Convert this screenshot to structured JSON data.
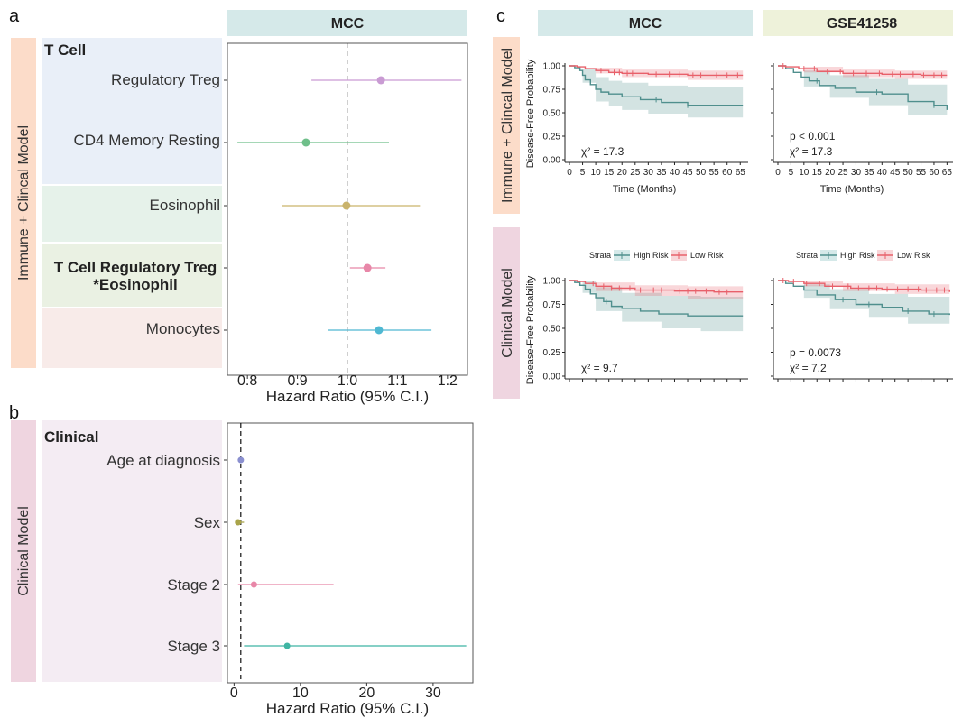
{
  "panels": {
    "a": "a",
    "b": "b",
    "c": "c"
  },
  "colors": {
    "tcell_bg": "#e9eff8",
    "eos_bg": "#e6f2ea",
    "inter_bg": "#eaf1e3",
    "mono_bg": "#f8ebe9",
    "clin_bg": "#f4ecf3",
    "side_immune": "#fcdcc9",
    "side_clin": "#efd5e0",
    "strip_mcc": "#d5e9e9",
    "strip_gse": "#eef2da",
    "high_risk": "#4f8f8d",
    "low_risk": "#e8606a"
  },
  "chart_data": [
    {
      "type": "forest",
      "panel": "a",
      "strip_label": "MCC",
      "side_label": "Immune + Clincal Model",
      "xlabel": "Hazard Ratio (95% C.I.)",
      "xticks": [
        "0.8",
        "0.9",
        "1.0",
        "1.1",
        "1.2"
      ],
      "xtick_values": [
        0.8,
        0.9,
        1.0,
        1.1,
        1.2
      ],
      "xlim": [
        0.76,
        1.24
      ],
      "reference": 1.0,
      "group_label": "T Cell",
      "rows": [
        {
          "label": "Regulatory Treg",
          "hr": 1.067,
          "lo": 0.928,
          "hi": 1.228,
          "color": "#c99bd3"
        },
        {
          "label": "CD4 Memory Resting",
          "hr": 0.917,
          "lo": 0.78,
          "hi": 1.083,
          "color": "#6fbf8a"
        },
        {
          "label": "Eosinophil",
          "hr": 0.998,
          "lo": 0.87,
          "hi": 1.145,
          "color": "#c9b36b"
        },
        {
          "label_line1": "T Cell Regulatory Treg",
          "label_line2": "*Eosinophil",
          "hr": 1.04,
          "lo": 1.005,
          "hi": 1.076,
          "color": "#e887a8"
        },
        {
          "label": "Monocytes",
          "hr": 1.063,
          "lo": 0.962,
          "hi": 1.168,
          "color": "#4fb8d2"
        }
      ]
    },
    {
      "type": "forest",
      "panel": "b",
      "side_label": "Clinical Model",
      "xlabel": "Hazard Ratio (95% C.I.)",
      "xticks": [
        "0",
        "10",
        "20",
        "30"
      ],
      "xtick_values": [
        0,
        10,
        20,
        30
      ],
      "xlim": [
        -1,
        36
      ],
      "reference": 1,
      "group_label": "Clinical",
      "rows": [
        {
          "label": "Age at diagnosis",
          "hr": 1.02,
          "lo": 0.95,
          "hi": 1.1,
          "color": "#8a8fcf"
        },
        {
          "label": "Sex",
          "hr": 0.6,
          "lo": 0.2,
          "hi": 1.5,
          "color": "#a9a44a"
        },
        {
          "label": "Stage 2",
          "hr": 3.0,
          "lo": 0.6,
          "hi": 15.0,
          "color": "#e887a8"
        },
        {
          "label": "Stage 3",
          "hr": 8.0,
          "lo": 1.5,
          "hi": 35.0,
          "color": "#3fb5a3"
        }
      ]
    },
    {
      "type": "line",
      "subtype": "kaplan-meier",
      "panel": "c",
      "col_labels": [
        "MCC",
        "GSE41258"
      ],
      "row_labels": [
        "Immune + Clincal Model",
        "Clinical Model"
      ],
      "ylabel": "Disease-Free Probability",
      "xlabel": "Time (Months)",
      "xticks": [
        "0",
        "5",
        "10",
        "15",
        "20",
        "25",
        "30",
        "35",
        "40",
        "45",
        "50",
        "55",
        "60",
        "65"
      ],
      "yticks": [
        "0.00",
        "0.25",
        "0.50",
        "0.75",
        "1.00"
      ],
      "xlim": [
        0,
        68
      ],
      "ylim": [
        0,
        1
      ],
      "legend_title": "Strata",
      "legend": [
        "High Risk",
        "Low Risk"
      ],
      "plots": [
        {
          "row": 0,
          "col": 0,
          "p_text": "",
          "chi_text": "χ² = 17.3",
          "high": [
            [
              0,
              1.0
            ],
            [
              2,
              0.98
            ],
            [
              4,
              0.95
            ],
            [
              5,
              0.9
            ],
            [
              6,
              0.85
            ],
            [
              8,
              0.8
            ],
            [
              10,
              0.75
            ],
            [
              12,
              0.72
            ],
            [
              15,
              0.7
            ],
            [
              20,
              0.67
            ],
            [
              27,
              0.64
            ],
            [
              35,
              0.61
            ],
            [
              45,
              0.58
            ],
            [
              66,
              0.58
            ]
          ],
          "high_ci": [
            [
              0,
              1.0,
              1.0
            ],
            [
              5,
              0.97,
              0.82
            ],
            [
              10,
              0.88,
              0.62
            ],
            [
              15,
              0.84,
              0.57
            ],
            [
              20,
              0.82,
              0.53
            ],
            [
              30,
              0.79,
              0.49
            ],
            [
              45,
              0.77,
              0.45
            ],
            [
              66,
              0.77,
              0.45
            ]
          ],
          "low": [
            [
              0,
              1.0
            ],
            [
              3,
              0.99
            ],
            [
              6,
              0.97
            ],
            [
              10,
              0.95
            ],
            [
              15,
              0.93
            ],
            [
              20,
              0.92
            ],
            [
              30,
              0.91
            ],
            [
              45,
              0.9
            ],
            [
              66,
              0.9
            ]
          ],
          "low_ci": [
            [
              0,
              1.0,
              1.0
            ],
            [
              10,
              0.98,
              0.92
            ],
            [
              20,
              0.96,
              0.88
            ],
            [
              45,
              0.95,
              0.85
            ],
            [
              66,
              0.95,
              0.84
            ]
          ],
          "high_censor": [
            33,
            45
          ],
          "low_censor": [
            12,
            17,
            19,
            22,
            24,
            28,
            33,
            38,
            42,
            47,
            50,
            56,
            60,
            64
          ]
        },
        {
          "row": 0,
          "col": 1,
          "p_text": "p < 0.001",
          "chi_text": "χ² = 17.3",
          "high": [
            [
              0,
              1.0
            ],
            [
              3,
              0.97
            ],
            [
              6,
              0.93
            ],
            [
              9,
              0.88
            ],
            [
              12,
              0.84
            ],
            [
              16,
              0.79
            ],
            [
              22,
              0.76
            ],
            [
              30,
              0.72
            ],
            [
              40,
              0.7
            ],
            [
              50,
              0.62
            ],
            [
              60,
              0.58
            ],
            [
              65,
              0.53
            ]
          ],
          "high_ci": [
            [
              0,
              1.0,
              1.0
            ],
            [
              10,
              0.95,
              0.78
            ],
            [
              20,
              0.9,
              0.66
            ],
            [
              35,
              0.86,
              0.58
            ],
            [
              50,
              0.8,
              0.48
            ],
            [
              65,
              0.74,
              0.35
            ]
          ],
          "low": [
            [
              0,
              1.0
            ],
            [
              3,
              0.99
            ],
            [
              8,
              0.97
            ],
            [
              15,
              0.94
            ],
            [
              25,
              0.92
            ],
            [
              40,
              0.91
            ],
            [
              55,
              0.9
            ],
            [
              65,
              0.9
            ]
          ],
          "low_ci": [
            [
              0,
              1.0,
              1.0
            ],
            [
              10,
              0.99,
              0.93
            ],
            [
              25,
              0.96,
              0.88
            ],
            [
              45,
              0.95,
              0.86
            ],
            [
              65,
              0.95,
              0.84
            ]
          ],
          "high_censor": [
            15,
            38,
            60
          ],
          "low_censor": [
            2,
            10,
            14,
            19,
            24,
            29,
            34,
            39,
            44,
            47,
            52,
            56,
            60,
            63
          ]
        },
        {
          "row": 1,
          "col": 0,
          "p_text": "",
          "chi_text": "χ² = 9.7",
          "high": [
            [
              0,
              1.0
            ],
            [
              2,
              0.98
            ],
            [
              4,
              0.95
            ],
            [
              6,
              0.91
            ],
            [
              8,
              0.86
            ],
            [
              10,
              0.82
            ],
            [
              13,
              0.78
            ],
            [
              16,
              0.73
            ],
            [
              20,
              0.71
            ],
            [
              27,
              0.68
            ],
            [
              34,
              0.65
            ],
            [
              45,
              0.63
            ],
            [
              66,
              0.63
            ]
          ],
          "high_ci": [
            [
              0,
              1.0,
              1.0
            ],
            [
              5,
              0.99,
              0.87
            ],
            [
              10,
              0.93,
              0.68
            ],
            [
              20,
              0.87,
              0.57
            ],
            [
              35,
              0.84,
              0.5
            ],
            [
              50,
              0.83,
              0.47
            ],
            [
              66,
              0.83,
              0.47
            ]
          ],
          "low": [
            [
              0,
              1.0
            ],
            [
              3,
              0.99
            ],
            [
              6,
              0.97
            ],
            [
              10,
              0.94
            ],
            [
              16,
              0.92
            ],
            [
              25,
              0.9
            ],
            [
              40,
              0.89
            ],
            [
              55,
              0.88
            ],
            [
              66,
              0.88
            ]
          ],
          "low_ci": [
            [
              0,
              1.0,
              1.0
            ],
            [
              10,
              0.98,
              0.89
            ],
            [
              25,
              0.95,
              0.84
            ],
            [
              45,
              0.94,
              0.81
            ],
            [
              66,
              0.94,
              0.8
            ]
          ],
          "high_censor": [
            14
          ],
          "low_censor": [
            9,
            13,
            16,
            19,
            23,
            27,
            32,
            35,
            42,
            45,
            48,
            52,
            57,
            60
          ]
        },
        {
          "row": 1,
          "col": 1,
          "p_text": "p = 0.0073",
          "chi_text": "χ² = 7.2",
          "high": [
            [
              0,
              1.0
            ],
            [
              3,
              0.97
            ],
            [
              6,
              0.94
            ],
            [
              10,
              0.9
            ],
            [
              15,
              0.85
            ],
            [
              22,
              0.8
            ],
            [
              30,
              0.75
            ],
            [
              40,
              0.72
            ],
            [
              48,
              0.68
            ],
            [
              58,
              0.65
            ],
            [
              66,
              0.64
            ]
          ],
          "high_ci": [
            [
              0,
              1.0,
              1.0
            ],
            [
              10,
              0.96,
              0.82
            ],
            [
              20,
              0.91,
              0.7
            ],
            [
              35,
              0.86,
              0.62
            ],
            [
              50,
              0.83,
              0.55
            ],
            [
              66,
              0.8,
              0.5
            ]
          ],
          "low": [
            [
              0,
              1.0
            ],
            [
              4,
              0.99
            ],
            [
              10,
              0.97
            ],
            [
              18,
              0.94
            ],
            [
              28,
              0.92
            ],
            [
              40,
              0.91
            ],
            [
              55,
              0.9
            ],
            [
              66,
              0.88
            ]
          ],
          "low_ci": [
            [
              0,
              1.0,
              1.0
            ],
            [
              10,
              0.99,
              0.94
            ],
            [
              25,
              0.97,
              0.89
            ],
            [
              45,
              0.96,
              0.86
            ],
            [
              66,
              0.95,
              0.82
            ]
          ],
          "high_censor": [
            25,
            35,
            50,
            60
          ],
          "low_censor": [
            2,
            6,
            11,
            16,
            21,
            27,
            31,
            35,
            38,
            42,
            46,
            50,
            54,
            57,
            61,
            64
          ]
        }
      ]
    }
  ]
}
